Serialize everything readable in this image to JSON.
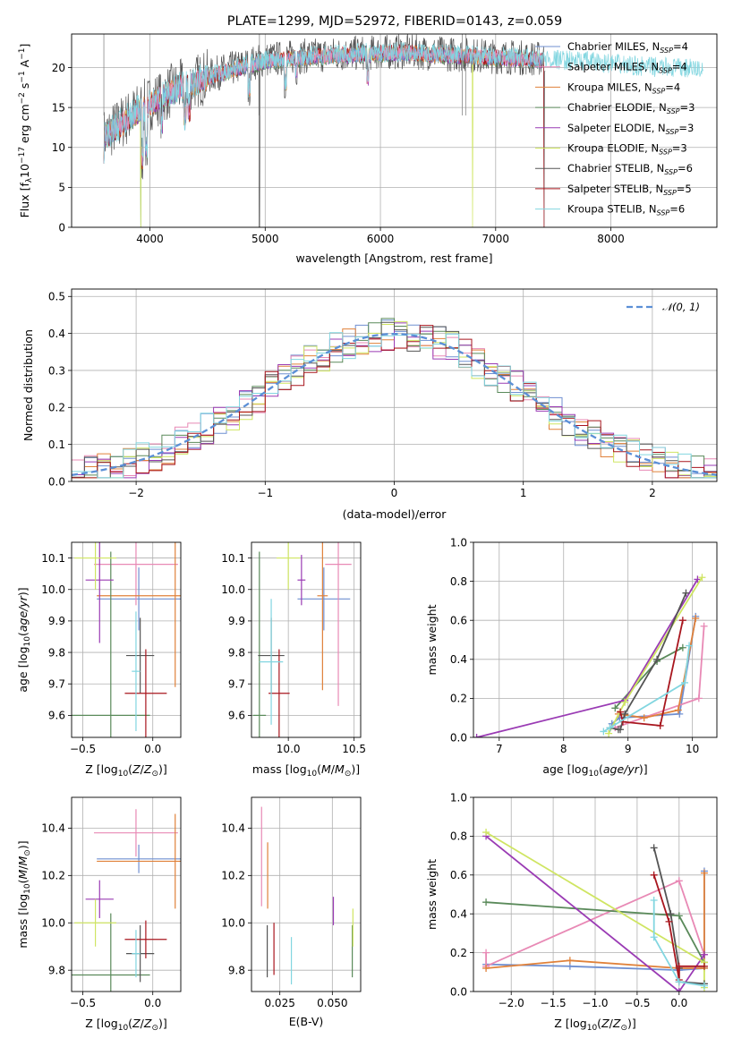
{
  "title": "PLATE=1299, MJD=52972, FIBERID=0143, z=0.059",
  "colors": {
    "chabrier_miles": "#6f8fd1",
    "salpeter_miles": "#e889b5",
    "kroupa_miles": "#e0813a",
    "chabrier_elodie": "#5a8a5a",
    "salpeter_elodie": "#9a3bb4",
    "kroupa_elodie": "#cfe562",
    "chabrier_stelib": "#555555",
    "salpeter_stelib": "#a8161e",
    "kroupa_stelib": "#82d6e0",
    "gauss": "#5b8fd6"
  },
  "legend": {
    "spectrum": [
      "Chabrier MILES, N",
      "Salpeter MILES, N",
      "Kroupa MILES, N",
      "Chabrier ELODIE, N",
      "Salpeter ELODIE, N",
      "Kroupa ELODIE, N",
      "Chabrier STELIB, N",
      "Salpeter STELIB, N",
      "Kroupa STELIB, N"
    ],
    "subscript": "SSP",
    "nssp": [
      "=4",
      "=4",
      "=4",
      "=3",
      "=3",
      "=3",
      "=6",
      "=5",
      "=6"
    ],
    "gauss": "𝒩(0, 1)"
  },
  "chart_data": [
    {
      "id": "spectrum",
      "type": "line",
      "xlabel": "wavelength [Angstrom, rest frame]",
      "ylabel": "Flux [f_λ10^-17 erg cm^-2 s^-1 A^-1]",
      "xlim": [
        3320,
        8920
      ],
      "ylim": [
        0,
        24.2
      ],
      "xticks": [
        4000,
        5000,
        6000,
        7000,
        8000
      ],
      "yticks": [
        0,
        5,
        10,
        15,
        20
      ],
      "x_range": [
        3600,
        8800
      ],
      "trend_y": [
        11.2,
        14.5,
        17.0,
        19.2,
        20.8,
        21.3,
        21.6,
        21.8,
        21.5,
        21.2,
        20.9,
        20.6,
        20.0,
        19.6
      ],
      "trend_x": [
        3600,
        3900,
        4200,
        4600,
        5000,
        5400,
        5800,
        6200,
        6600,
        7000,
        7400,
        7800,
        8200,
        8800
      ]
    },
    {
      "id": "residuals",
      "type": "bar",
      "xlabel": "(data-model)/error",
      "ylabel": "Normed distribution",
      "xlim": [
        -2.5,
        2.5
      ],
      "ylim": [
        0,
        0.52
      ],
      "xticks": [
        -2,
        -1,
        0,
        1,
        2
      ],
      "yticks": [
        0.0,
        0.1,
        0.2,
        0.3,
        0.4,
        0.5
      ],
      "bin_width": 0.1,
      "gaussian": {
        "mean": 0,
        "sigma": 1
      }
    },
    {
      "id": "age_vs_Z",
      "type": "scatter",
      "xlabel": "Z [log10(Z/Z⊙)]",
      "ylabel": "age  [log10(age/yr)]",
      "xlim": [
        -0.58,
        0.2
      ],
      "ylim": [
        9.53,
        10.15
      ],
      "xticks": [
        -0.5,
        0.0
      ],
      "yticks": [
        9.6,
        9.7,
        9.8,
        9.9,
        10.0,
        10.1
      ],
      "points": [
        {
          "series": "chabrier_miles",
          "x": -0.1,
          "xerr": 0.3,
          "y": 9.97,
          "yerr": 0.1
        },
        {
          "series": "salpeter_miles",
          "x": -0.12,
          "xerr": 0.3,
          "y": 10.08,
          "yerr": 0.13
        },
        {
          "series": "kroupa_miles",
          "x": 0.16,
          "xerr": 0.56,
          "y": 9.98,
          "yerr": 0.29
        },
        {
          "series": "chabrier_elodie",
          "x": -0.3,
          "xerr": 0.28,
          "y": 9.6,
          "yerr": 0.52
        },
        {
          "series": "salpeter_elodie",
          "x": -0.38,
          "xerr": 0.1,
          "y": 10.03,
          "yerr": 0.2
        },
        {
          "series": "kroupa_elodie",
          "x": -0.41,
          "xerr": 0.15,
          "y": 10.1,
          "yerr": 0.1
        },
        {
          "series": "chabrier_stelib",
          "x": -0.09,
          "xerr": 0.1,
          "y": 9.79,
          "yerr": 0.12
        },
        {
          "series": "salpeter_stelib",
          "x": -0.05,
          "xerr": 0.15,
          "y": 9.67,
          "yerr": 0.14
        },
        {
          "series": "kroupa_stelib",
          "x": -0.12,
          "xerr": 0.03,
          "y": 9.74,
          "yerr": 0.19
        }
      ]
    },
    {
      "id": "age_vs_mass",
      "type": "scatter",
      "xlabel": "mass [log10(M/M⊙)]",
      "ylabel": "",
      "xlim": [
        9.72,
        10.55
      ],
      "ylim": [
        9.53,
        10.15
      ],
      "xticks": [
        10.0,
        10.5
      ],
      "yticks": [
        9.6,
        9.7,
        9.8,
        9.9,
        10.0,
        10.1
      ],
      "points": [
        {
          "series": "chabrier_miles",
          "x": 10.27,
          "xerr": 0.2,
          "y": 9.97,
          "yerr": 0.1
        },
        {
          "series": "salpeter_miles",
          "x": 10.38,
          "xerr": 0.1,
          "y": 10.08,
          "yerr": 0.45
        },
        {
          "series": "kroupa_miles",
          "x": 10.26,
          "xerr": 0.04,
          "y": 9.98,
          "yerr": 0.3
        },
        {
          "series": "chabrier_elodie",
          "x": 9.78,
          "xerr": 0.05,
          "y": 9.6,
          "yerr": 0.52
        },
        {
          "series": "salpeter_elodie",
          "x": 10.1,
          "xerr": 0.03,
          "y": 10.03,
          "yerr": 0.08
        },
        {
          "series": "kroupa_elodie",
          "x": 10.0,
          "xerr": 0.09,
          "y": 10.1,
          "yerr": 0.1
        },
        {
          "series": "chabrier_stelib",
          "x": 9.87,
          "xerr": 0.1,
          "y": 9.79,
          "yerr": 0.12
        },
        {
          "series": "salpeter_stelib",
          "x": 9.93,
          "xerr": 0.08,
          "y": 9.67,
          "yerr": 0.14
        },
        {
          "series": "kroupa_stelib",
          "x": 9.87,
          "xerr": 0.09,
          "y": 9.77,
          "yerr": 0.2
        }
      ]
    },
    {
      "id": "mass_vs_Z",
      "type": "scatter",
      "xlabel": "Z [log10(Z/Z⊙)]",
      "ylabel": "mass [log10(M/M⊙)]",
      "xlim": [
        -0.58,
        0.2
      ],
      "ylim": [
        9.71,
        10.53
      ],
      "xticks": [
        -0.5,
        0.0
      ],
      "yticks": [
        9.8,
        10.0,
        10.2,
        10.4
      ],
      "points": [
        {
          "series": "chabrier_miles",
          "x": -0.1,
          "xerr": 0.3,
          "y": 10.27,
          "yerr": 0.06
        },
        {
          "series": "salpeter_miles",
          "x": -0.12,
          "xerr": 0.3,
          "y": 10.38,
          "yerr": 0.1
        },
        {
          "series": "kroupa_miles",
          "x": 0.16,
          "xerr": 0.56,
          "y": 10.26,
          "yerr": 0.2
        },
        {
          "series": "chabrier_elodie",
          "x": -0.3,
          "xerr": 0.28,
          "y": 9.78,
          "yerr": 0.26
        },
        {
          "series": "salpeter_elodie",
          "x": -0.38,
          "xerr": 0.1,
          "y": 10.1,
          "yerr": 0.08
        },
        {
          "series": "kroupa_elodie",
          "x": -0.41,
          "xerr": 0.15,
          "y": 10.0,
          "yerr": 0.1
        },
        {
          "series": "chabrier_stelib",
          "x": -0.09,
          "xerr": 0.1,
          "y": 9.87,
          "yerr": 0.12
        },
        {
          "series": "salpeter_stelib",
          "x": -0.05,
          "xerr": 0.15,
          "y": 9.93,
          "yerr": 0.08
        },
        {
          "series": "kroupa_stelib",
          "x": -0.12,
          "xerr": 0.03,
          "y": 9.87,
          "yerr": 0.1
        }
      ]
    },
    {
      "id": "mass_vs_ebv",
      "type": "scatter",
      "xlabel": "E(B-V)",
      "ylabel": "",
      "xlim": [
        0.0115,
        0.0635
      ],
      "ylim": [
        9.71,
        10.53
      ],
      "xticks": [
        0.025,
        0.05
      ],
      "xticklabels": [
        "0.025",
        "0.050"
      ],
      "yticks": [
        9.8,
        10.0,
        10.2,
        10.4
      ],
      "points": [
        {
          "series": "salpeter_miles",
          "x": 0.0163,
          "y": 10.28,
          "yerr": 0.21
        },
        {
          "series": "kroupa_miles",
          "x": 0.0192,
          "y": 10.2,
          "yerr": 0.14
        },
        {
          "series": "chabrier_elodie",
          "x": 0.0595,
          "y": 9.88,
          "yerr": 0.11
        },
        {
          "series": "salpeter_elodie",
          "x": 0.0505,
          "y": 10.05,
          "yerr": 0.06
        },
        {
          "series": "kroupa_elodie",
          "x": 0.0598,
          "y": 9.98,
          "yerr": 0.08
        },
        {
          "series": "chabrier_stelib",
          "x": 0.019,
          "y": 9.88,
          "yerr": 0.11
        },
        {
          "series": "salpeter_stelib",
          "x": 0.0222,
          "y": 9.89,
          "yerr": 0.11
        },
        {
          "series": "kroupa_stelib",
          "x": 0.0305,
          "y": 9.84,
          "yerr": 0.1
        }
      ]
    },
    {
      "id": "weight_vs_age",
      "type": "line",
      "xlabel": "age  [log10(age/yr)]",
      "ylabel": "mass weight",
      "xlim": [
        6.6,
        10.38
      ],
      "ylim": [
        0,
        1
      ],
      "xticks": [
        7,
        8,
        9,
        10
      ],
      "yticks": [
        0.0,
        0.2,
        0.4,
        0.6,
        0.8,
        1.0
      ],
      "series": [
        {
          "series": "chabrier_miles",
          "points": [
            [
              8.75,
              0.07
            ],
            [
              8.87,
              0.1
            ],
            [
              9.8,
              0.12
            ],
            [
              10.05,
              0.62
            ]
          ]
        },
        {
          "series": "salpeter_miles",
          "points": [
            [
              8.8,
              0.05
            ],
            [
              10.1,
              0.2
            ],
            [
              10.18,
              0.57
            ]
          ]
        },
        {
          "series": "kroupa_miles",
          "points": [
            [
              8.85,
              0.12
            ],
            [
              9.25,
              0.1
            ],
            [
              9.78,
              0.14
            ],
            [
              10.05,
              0.61
            ]
          ]
        },
        {
          "series": "chabrier_elodie",
          "points": [
            [
              8.8,
              0.15
            ],
            [
              9.45,
              0.39
            ],
            [
              9.85,
              0.46
            ]
          ]
        },
        {
          "series": "salpeter_elodie",
          "points": [
            [
              6.65,
              0.0
            ],
            [
              8.95,
              0.19
            ],
            [
              10.08,
              0.81
            ]
          ]
        },
        {
          "series": "kroupa_elodie",
          "points": [
            [
              8.7,
              0.02
            ],
            [
              8.95,
              0.18
            ],
            [
              10.15,
              0.82
            ]
          ]
        },
        {
          "series": "chabrier_stelib",
          "points": [
            [
              8.72,
              0.05
            ],
            [
              8.85,
              0.04
            ],
            [
              8.88,
              0.04
            ],
            [
              8.95,
              0.12
            ],
            [
              9.45,
              0.4
            ],
            [
              9.9,
              0.74
            ]
          ]
        },
        {
          "series": "salpeter_stelib",
          "points": [
            [
              8.88,
              0.13
            ],
            [
              8.92,
              0.08
            ],
            [
              9.5,
              0.06
            ],
            [
              9.85,
              0.6
            ]
          ]
        },
        {
          "series": "kroupa_stelib",
          "points": [
            [
              8.62,
              0.03
            ],
            [
              8.72,
              0.05
            ],
            [
              9.88,
              0.28
            ],
            [
              9.95,
              0.47
            ]
          ]
        }
      ]
    },
    {
      "id": "weight_vs_Z",
      "type": "line",
      "xlabel": "Z [log10(Z/Z⊙)]",
      "ylabel": "mass weight",
      "xlim": [
        -2.45,
        0.45
      ],
      "ylim": [
        0,
        1
      ],
      "xticks": [
        -2.0,
        -1.5,
        -1.0,
        -0.5,
        0.0
      ],
      "yticks": [
        0.0,
        0.2,
        0.4,
        0.6,
        0.8,
        1.0
      ],
      "series": [
        {
          "series": "chabrier_miles",
          "points": [
            [
              -2.3,
              0.14
            ],
            [
              -1.3,
              0.13
            ],
            [
              0.0,
              0.11
            ],
            [
              0.3,
              0.12
            ],
            [
              0.3,
              0.62
            ]
          ]
        },
        {
          "series": "salpeter_miles",
          "points": [
            [
              -2.3,
              0.2
            ],
            [
              -2.3,
              0.13
            ],
            [
              0.0,
              0.57
            ],
            [
              0.3,
              0.19
            ]
          ]
        },
        {
          "series": "kroupa_miles",
          "points": [
            [
              -2.3,
              0.12
            ],
            [
              -1.3,
              0.16
            ],
            [
              0.0,
              0.12
            ],
            [
              0.3,
              0.12
            ],
            [
              0.3,
              0.61
            ]
          ]
        },
        {
          "series": "chabrier_elodie",
          "points": [
            [
              -2.3,
              0.46
            ],
            [
              0.0,
              0.39
            ],
            [
              0.3,
              0.15
            ]
          ]
        },
        {
          "series": "salpeter_elodie",
          "points": [
            [
              -2.3,
              0.8
            ],
            [
              0.0,
              0.0
            ],
            [
              0.3,
              0.19
            ]
          ]
        },
        {
          "series": "kroupa_elodie",
          "points": [
            [
              -2.3,
              0.82
            ],
            [
              0.3,
              0.15
            ],
            [
              0.3,
              0.02
            ]
          ]
        },
        {
          "series": "chabrier_stelib",
          "points": [
            [
              -0.3,
              0.74
            ],
            [
              -0.1,
              0.4
            ],
            [
              0.0,
              0.12
            ],
            [
              0.0,
              0.05
            ],
            [
              0.3,
              0.04
            ]
          ]
        },
        {
          "series": "salpeter_stelib",
          "points": [
            [
              -0.3,
              0.6
            ],
            [
              -0.12,
              0.36
            ],
            [
              0.0,
              0.06
            ],
            [
              0.0,
              0.13
            ],
            [
              0.3,
              0.13
            ]
          ]
        },
        {
          "series": "kroupa_stelib",
          "points": [
            [
              -0.3,
              0.47
            ],
            [
              -0.3,
              0.28
            ],
            [
              0.0,
              0.05
            ],
            [
              0.3,
              0.03
            ],
            [
              0.3,
              0.03
            ]
          ]
        }
      ]
    }
  ]
}
